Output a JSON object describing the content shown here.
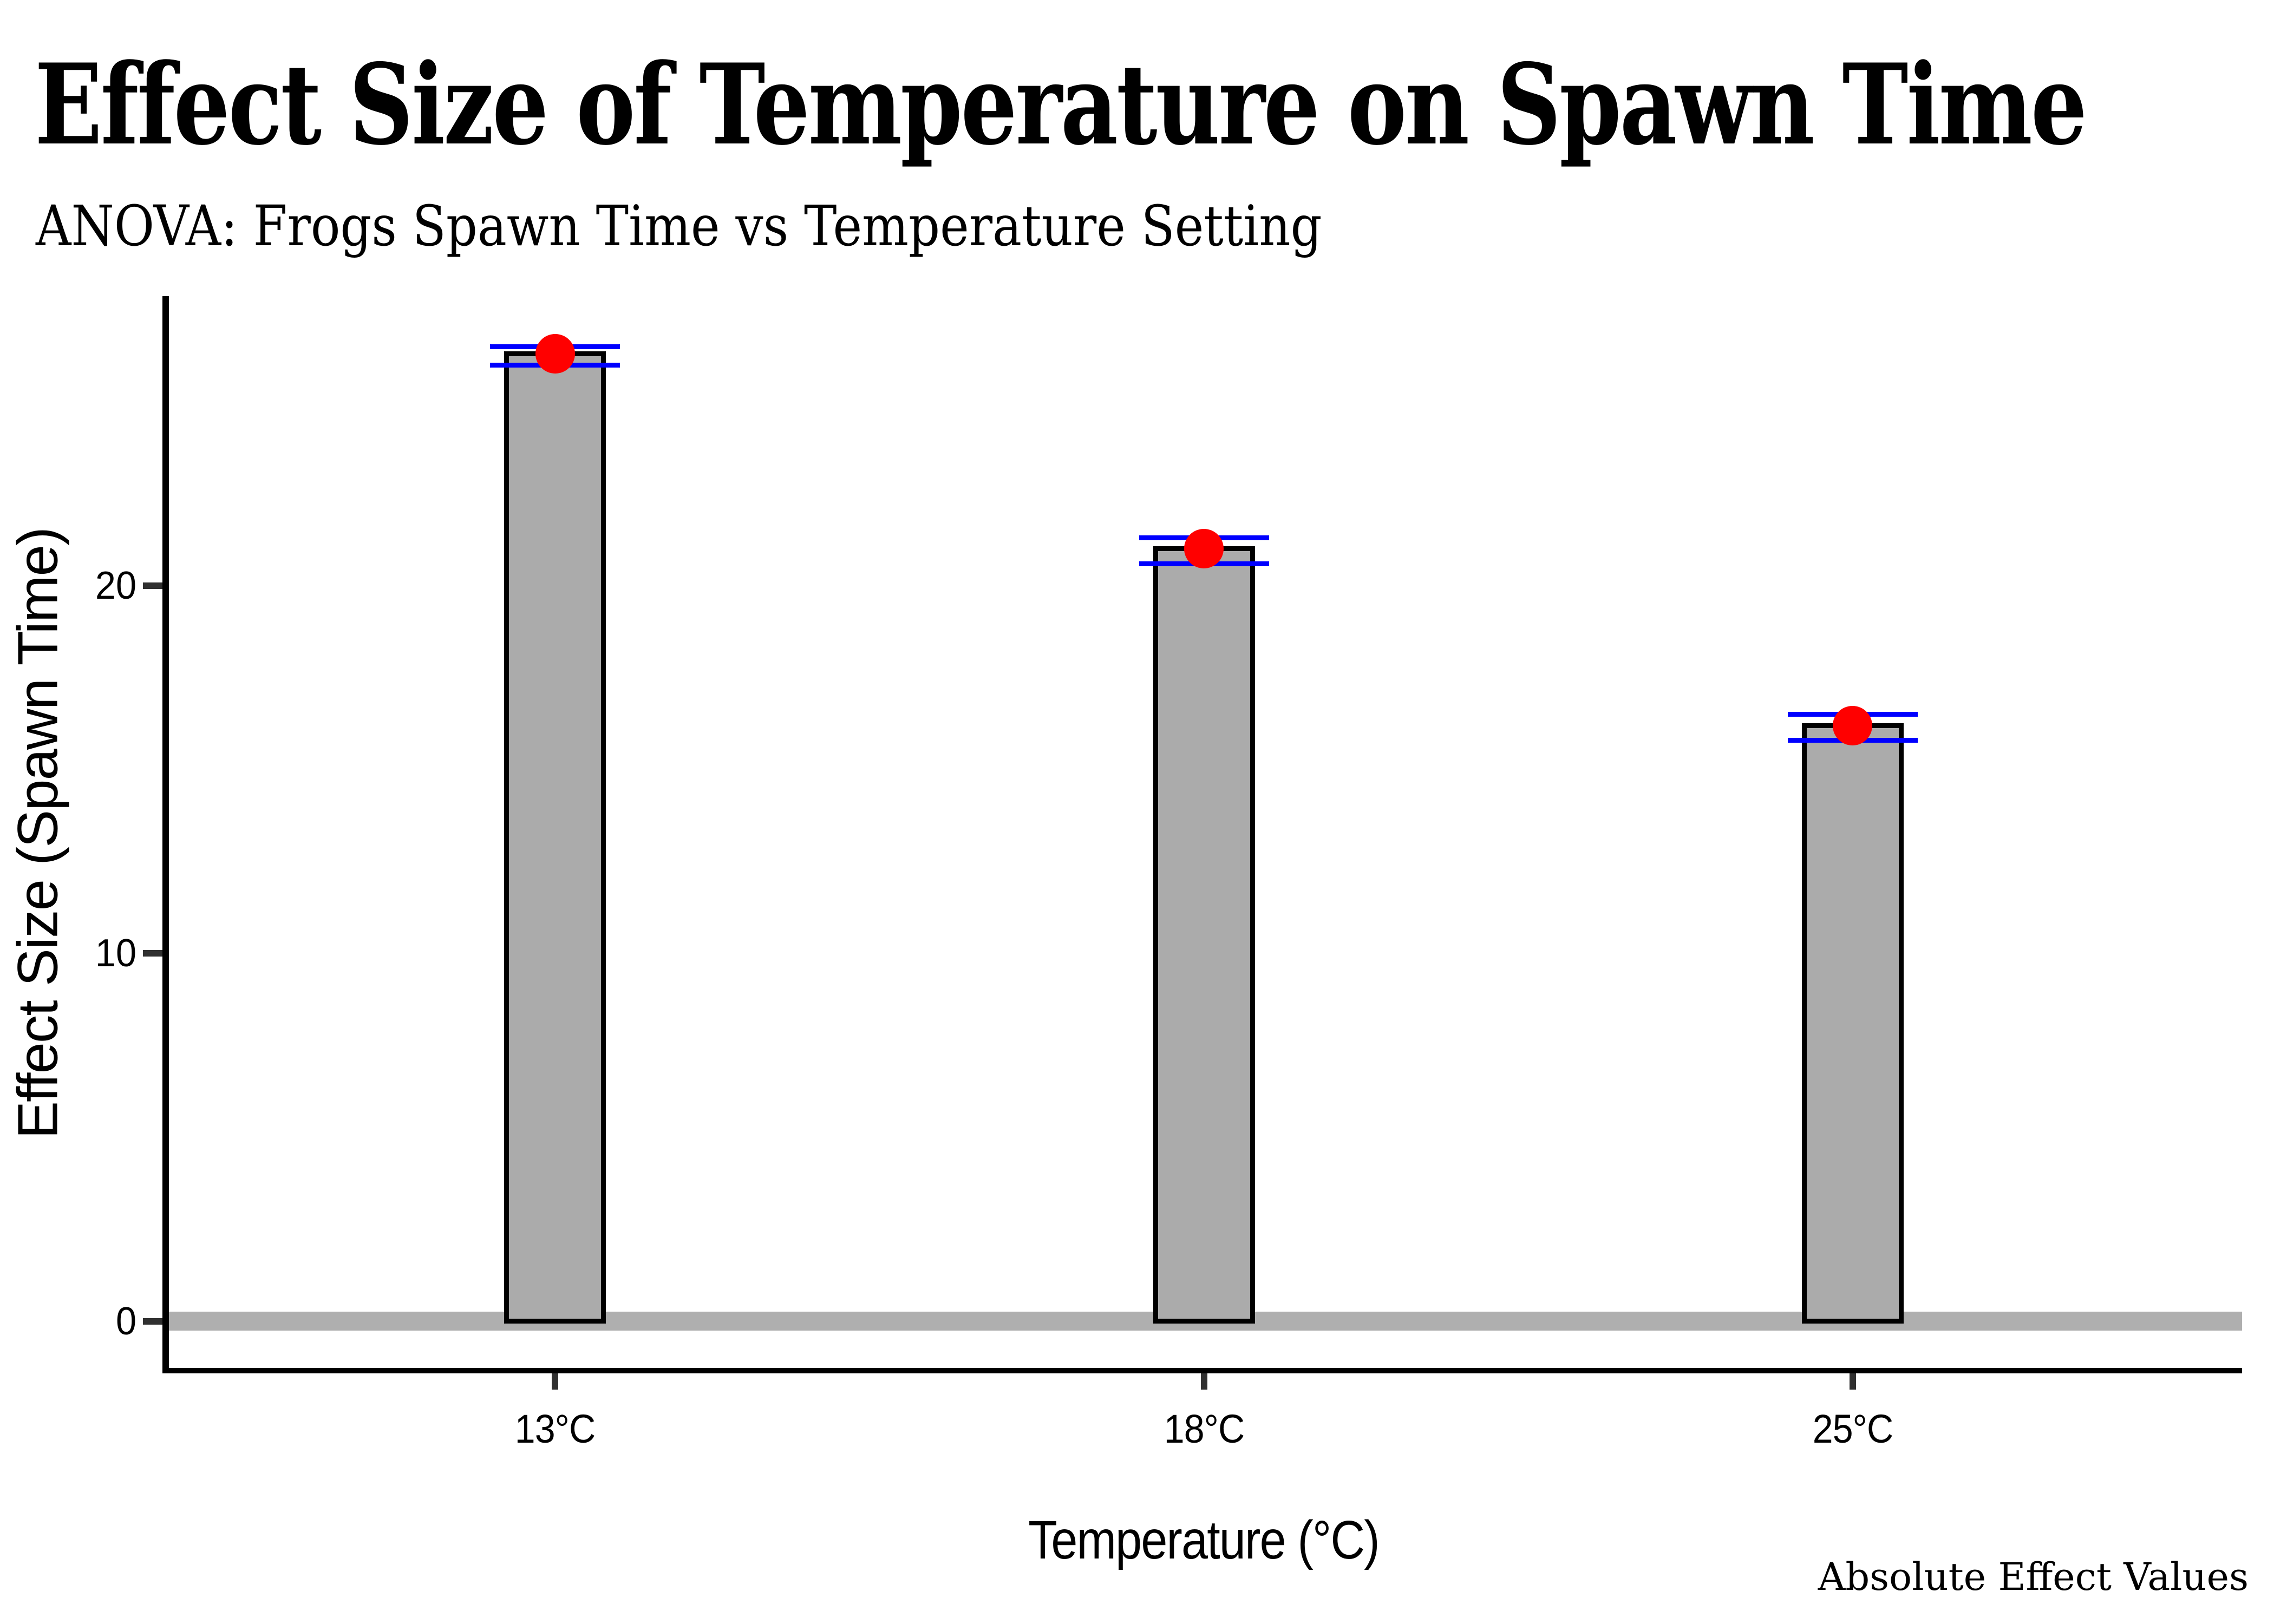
{
  "header": {
    "title": "Effect Size of Temperature on Spawn Time",
    "subtitle": "ANOVA: Frogs Spawn Time vs Temperature Setting"
  },
  "caption": "Absolute Effect Values",
  "chart_data": {
    "type": "bar",
    "title": "Effect Size of Temperature on Spawn Time",
    "subtitle": "ANOVA: Frogs Spawn Time vs Temperature Setting",
    "caption": "Absolute Effect Values",
    "categories": [
      "13°C",
      "18°C",
      "25°C"
    ],
    "values": [
      26.3,
      21.0,
      16.2
    ],
    "points": [
      26.3,
      21.0,
      16.2
    ],
    "error_low": [
      26.0,
      20.6,
      15.8
    ],
    "error_high": [
      26.5,
      21.3,
      16.5
    ],
    "xlabel": "Temperature (°C)",
    "ylabel": "Effect Size (Spawn Time)",
    "y_ticks": [
      0,
      10,
      20
    ],
    "ylim": [
      -1.3,
      27.9
    ],
    "grid": false,
    "legend_position": "none",
    "colors": {
      "bar_fill": "#ABABAB",
      "bar_stroke": "#000000",
      "error_bar": "#0000FF",
      "point": "#FF0000",
      "zero_band": "#AFAFAF",
      "axis_line": "#000000",
      "tick_mark": "#303030",
      "text": "#000000"
    }
  }
}
